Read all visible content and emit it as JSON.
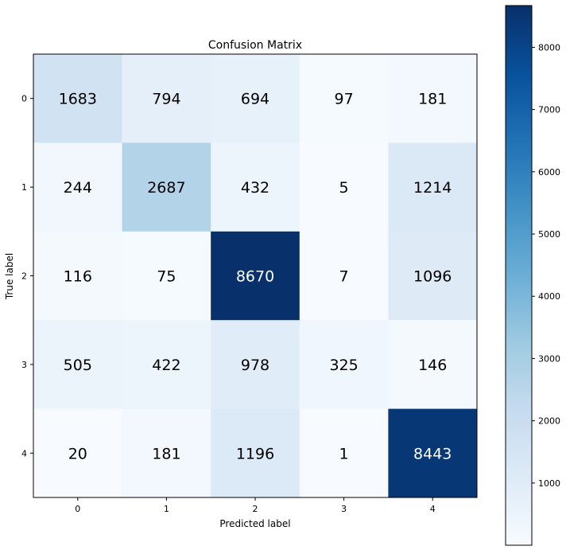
{
  "chart_data": {
    "type": "heatmap",
    "title": "Confusion Matrix",
    "xlabel": "Predicted label",
    "ylabel": "True label",
    "x_categories": [
      "0",
      "1",
      "2",
      "3",
      "4"
    ],
    "y_categories": [
      "0",
      "1",
      "2",
      "3",
      "4"
    ],
    "values": [
      [
        1683,
        794,
        694,
        97,
        181
      ],
      [
        244,
        2687,
        432,
        5,
        1214
      ],
      [
        116,
        75,
        8670,
        7,
        1096
      ],
      [
        505,
        422,
        978,
        325,
        146
      ],
      [
        20,
        181,
        1196,
        1,
        8443
      ]
    ],
    "colormap": "Blues",
    "color_min": 1,
    "color_max": 8670,
    "colorbar_ticks": [
      1000,
      2000,
      3000,
      4000,
      5000,
      6000,
      7000,
      8000
    ],
    "grid": false
  }
}
